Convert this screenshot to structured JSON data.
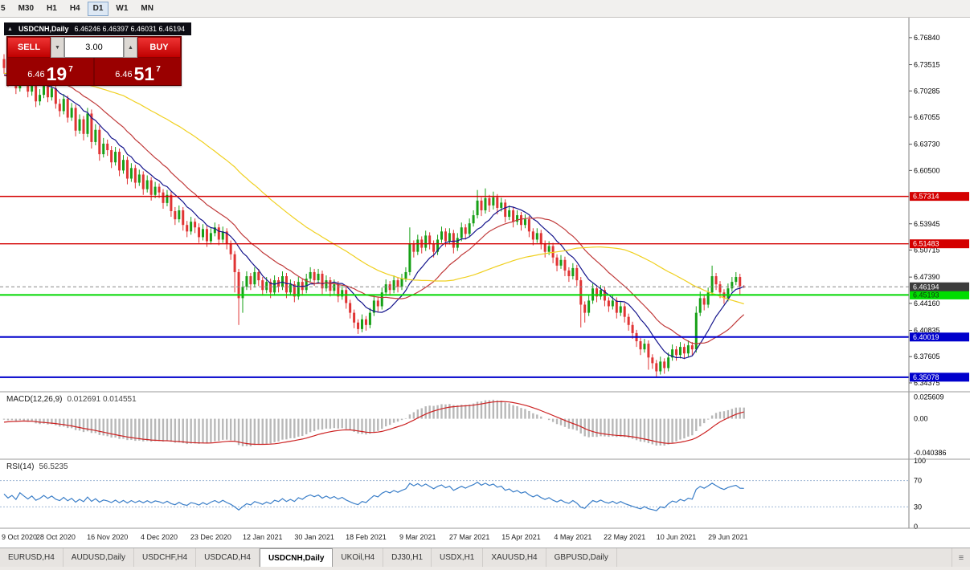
{
  "toolbar": {
    "timeframes": [
      {
        "label": "5",
        "active": false
      },
      {
        "label": "M30",
        "active": false
      },
      {
        "label": "H1",
        "active": false
      },
      {
        "label": "H4",
        "active": false
      },
      {
        "label": "D1",
        "active": true
      },
      {
        "label": "W1",
        "active": false
      },
      {
        "label": "MN",
        "active": false
      }
    ]
  },
  "chart_header": {
    "symbol": "USDCNH,Daily",
    "ohlc": "6.46246 6.46397 6.46031 6.46194",
    "toggle_icon": "▲"
  },
  "trade_panel": {
    "sell_label": "SELL",
    "buy_label": "BUY",
    "volume": "3.00",
    "spinner_down": "▼",
    "spinner_up": "▲",
    "sell_price": {
      "prefix": "6.46",
      "big": "19",
      "sup": "7"
    },
    "buy_price": {
      "prefix": "6.46",
      "big": "51",
      "sup": "7"
    }
  },
  "price_axis": {
    "ticks": [
      "6.76840",
      "6.73515",
      "6.70285",
      "6.67055",
      "6.63730",
      "6.60500",
      "6.53945",
      "6.50715",
      "6.47390",
      "6.44160",
      "6.40835",
      "6.37605",
      "6.34375"
    ],
    "badges": [
      {
        "value": "6.57314",
        "bg": "#d40000",
        "fg": "#ffffff"
      },
      {
        "value": "6.51483",
        "bg": "#d40000",
        "fg": "#ffffff"
      },
      {
        "value": "6.40019",
        "bg": "#0000cc",
        "fg": "#ffffff"
      },
      {
        "value": "6.35078",
        "bg": "#0000cc",
        "fg": "#ffffff"
      },
      {
        "value": "6.45193",
        "bg": "#00dd00",
        "fg": "#103310"
      }
    ],
    "current": {
      "value": "6.46194",
      "bg": "#3c3c3c",
      "fg": "#ffffff"
    }
  },
  "hlines": [
    {
      "price": 6.57314,
      "color": "#d40000",
      "w": 1.4
    },
    {
      "price": 6.51483,
      "color": "#d40000",
      "w": 1.4
    },
    {
      "price": 6.45193,
      "color": "#00d800",
      "w": 2
    },
    {
      "price": 6.40019,
      "color": "#0000cc",
      "w": 2
    },
    {
      "price": 6.35078,
      "color": "#0000cc",
      "w": 2
    }
  ],
  "chart_data": {
    "type": "candlestick",
    "title": "USDCNH, Daily",
    "ylim": [
      6.3368,
      6.789
    ],
    "grid": false,
    "x_label_every": 13,
    "x_labels": [
      "9 Oct 2020",
      "28 Oct 2020",
      "16 Nov 2020",
      "4 Dec 2020",
      "23 Dec 2020",
      "12 Jan 2021",
      "30 Jan 2021",
      "18 Feb 2021",
      "9 Mar 2021",
      "27 Mar 2021",
      "15 Apr 2021",
      "4 May 2021",
      "22 May 2021",
      "10 Jun 2021",
      "29 Jun 2021"
    ],
    "candle_colors": {
      "up": "#16a016",
      "down": "#e03434"
    },
    "moving_averages": [
      {
        "period": 10,
        "color": "#14148c"
      },
      {
        "period": 21,
        "color": "#c03a3a"
      },
      {
        "period": 55,
        "color": "#f0d020"
      }
    ],
    "prehistory_closes": [
      6.742,
      6.748,
      6.735,
      6.728,
      6.738,
      6.745,
      6.731,
      6.722,
      6.73,
      6.718,
      6.712,
      6.72,
      6.708,
      6.7,
      6.71,
      6.718,
      6.705,
      6.712,
      6.722,
      6.715,
      6.726,
      6.734,
      6.728,
      6.736
    ],
    "candles": [
      [
        6.742,
        6.748,
        6.724,
        6.731
      ],
      [
        6.731,
        6.738,
        6.708,
        6.715
      ],
      [
        6.715,
        6.733,
        6.71,
        6.724
      ],
      [
        6.724,
        6.729,
        6.699,
        6.706
      ],
      [
        6.706,
        6.748,
        6.702,
        6.733
      ],
      [
        6.733,
        6.739,
        6.712,
        6.718
      ],
      [
        6.718,
        6.723,
        6.695,
        6.702
      ],
      [
        6.702,
        6.721,
        6.697,
        6.715
      ],
      [
        6.715,
        6.719,
        6.683,
        6.69
      ],
      [
        6.69,
        6.705,
        6.685,
        6.698
      ],
      [
        6.698,
        6.718,
        6.694,
        6.712
      ],
      [
        6.712,
        6.716,
        6.689,
        6.695
      ],
      [
        6.695,
        6.712,
        6.691,
        6.706
      ],
      [
        6.706,
        6.71,
        6.681,
        6.687
      ],
      [
        6.687,
        6.693,
        6.671,
        6.678
      ],
      [
        6.678,
        6.699,
        6.674,
        6.693
      ],
      [
        6.693,
        6.697,
        6.664,
        6.67
      ],
      [
        6.67,
        6.688,
        6.666,
        6.682
      ],
      [
        6.682,
        6.686,
        6.647,
        6.654
      ],
      [
        6.654,
        6.674,
        6.65,
        6.668
      ],
      [
        6.668,
        6.672,
        6.642,
        6.65
      ],
      [
        6.65,
        6.682,
        6.646,
        6.675
      ],
      [
        6.675,
        6.68,
        6.632,
        6.64
      ],
      [
        6.64,
        6.662,
        6.636,
        6.655
      ],
      [
        6.655,
        6.66,
        6.617,
        6.625
      ],
      [
        6.625,
        6.645,
        6.621,
        6.638
      ],
      [
        6.638,
        6.643,
        6.623,
        6.63
      ],
      [
        6.63,
        6.635,
        6.608,
        6.615
      ],
      [
        6.615,
        6.634,
        6.611,
        6.628
      ],
      [
        6.628,
        6.632,
        6.598,
        6.605
      ],
      [
        6.605,
        6.624,
        6.601,
        6.618
      ],
      [
        6.618,
        6.622,
        6.588,
        6.595
      ],
      [
        6.595,
        6.614,
        6.591,
        6.608
      ],
      [
        6.608,
        6.612,
        6.583,
        6.59
      ],
      [
        6.59,
        6.606,
        6.586,
        6.6
      ],
      [
        6.6,
        6.604,
        6.575,
        6.582
      ],
      [
        6.582,
        6.599,
        6.578,
        6.593
      ],
      [
        6.593,
        6.597,
        6.568,
        6.575
      ],
      [
        6.575,
        6.591,
        6.571,
        6.585
      ],
      [
        6.585,
        6.589,
        6.571,
        6.578
      ],
      [
        6.578,
        6.582,
        6.558,
        6.565
      ],
      [
        6.565,
        6.581,
        6.561,
        6.575
      ],
      [
        6.575,
        6.579,
        6.548,
        6.555
      ],
      [
        6.555,
        6.56,
        6.538,
        6.545
      ],
      [
        6.545,
        6.562,
        6.541,
        6.556
      ],
      [
        6.556,
        6.56,
        6.531,
        6.538
      ],
      [
        6.538,
        6.543,
        6.523,
        6.53
      ],
      [
        6.53,
        6.548,
        6.526,
        6.542
      ],
      [
        6.542,
        6.546,
        6.528,
        6.535
      ],
      [
        6.535,
        6.54,
        6.516,
        6.523
      ],
      [
        6.523,
        6.539,
        6.519,
        6.533
      ],
      [
        6.533,
        6.537,
        6.511,
        6.518
      ],
      [
        6.518,
        6.534,
        6.514,
        6.528
      ],
      [
        6.528,
        6.541,
        6.524,
        6.535
      ],
      [
        6.535,
        6.539,
        6.513,
        6.52
      ],
      [
        6.52,
        6.536,
        6.516,
        6.53
      ],
      [
        6.53,
        6.534,
        6.508,
        6.515
      ],
      [
        6.515,
        6.519,
        6.495,
        6.502
      ],
      [
        6.502,
        6.506,
        6.455,
        6.48
      ],
      [
        6.48,
        6.484,
        6.415,
        6.448
      ],
      [
        6.448,
        6.469,
        6.43,
        6.462
      ],
      [
        6.462,
        6.481,
        6.458,
        6.475
      ],
      [
        6.475,
        6.479,
        6.458,
        6.465
      ],
      [
        6.465,
        6.486,
        6.461,
        6.48
      ],
      [
        6.48,
        6.484,
        6.463,
        6.47
      ],
      [
        6.47,
        6.474,
        6.451,
        6.458
      ],
      [
        6.458,
        6.474,
        6.454,
        6.468
      ],
      [
        6.468,
        6.472,
        6.448,
        6.455
      ],
      [
        6.455,
        6.476,
        6.451,
        6.47
      ],
      [
        6.47,
        6.474,
        6.455,
        6.462
      ],
      [
        6.462,
        6.481,
        6.458,
        6.475
      ],
      [
        6.475,
        6.479,
        6.448,
        6.455
      ],
      [
        6.455,
        6.471,
        6.451,
        6.465
      ],
      [
        6.465,
        6.469,
        6.443,
        6.45
      ],
      [
        6.45,
        6.474,
        6.446,
        6.468
      ],
      [
        6.468,
        6.472,
        6.451,
        6.458
      ],
      [
        6.458,
        6.478,
        6.454,
        6.472
      ],
      [
        6.472,
        6.486,
        6.468,
        6.48
      ],
      [
        6.48,
        6.484,
        6.463,
        6.47
      ],
      [
        6.47,
        6.484,
        6.466,
        6.478
      ],
      [
        6.478,
        6.482,
        6.453,
        6.46
      ],
      [
        6.46,
        6.476,
        6.456,
        6.47
      ],
      [
        6.47,
        6.474,
        6.45,
        6.457
      ],
      [
        6.457,
        6.471,
        6.453,
        6.465
      ],
      [
        6.465,
        6.469,
        6.443,
        6.45
      ],
      [
        6.45,
        6.464,
        6.446,
        6.458
      ],
      [
        6.458,
        6.462,
        6.435,
        6.442
      ],
      [
        6.442,
        6.446,
        6.423,
        6.43
      ],
      [
        6.43,
        6.434,
        6.411,
        6.418
      ],
      [
        6.418,
        6.422,
        6.404,
        6.41
      ],
      [
        6.41,
        6.428,
        6.406,
        6.422
      ],
      [
        6.422,
        6.426,
        6.408,
        6.415
      ],
      [
        6.415,
        6.436,
        6.411,
        6.43
      ],
      [
        6.43,
        6.451,
        6.426,
        6.445
      ],
      [
        6.445,
        6.449,
        6.431,
        6.438
      ],
      [
        6.438,
        6.461,
        6.434,
        6.455
      ],
      [
        6.455,
        6.471,
        6.451,
        6.465
      ],
      [
        6.465,
        6.469,
        6.451,
        6.458
      ],
      [
        6.458,
        6.476,
        6.454,
        6.47
      ],
      [
        6.47,
        6.474,
        6.455,
        6.462
      ],
      [
        6.462,
        6.478,
        6.458,
        6.472
      ],
      [
        6.472,
        6.486,
        6.468,
        6.48
      ],
      [
        6.48,
        6.535,
        6.476,
        6.515
      ],
      [
        6.515,
        6.519,
        6.498,
        6.505
      ],
      [
        6.505,
        6.526,
        6.501,
        6.52
      ],
      [
        6.52,
        6.524,
        6.503,
        6.51
      ],
      [
        6.51,
        6.531,
        6.506,
        6.525
      ],
      [
        6.525,
        6.529,
        6.508,
        6.515
      ],
      [
        6.515,
        6.519,
        6.498,
        6.505
      ],
      [
        6.505,
        6.526,
        6.501,
        6.52
      ],
      [
        6.52,
        6.536,
        6.516,
        6.53
      ],
      [
        6.53,
        6.534,
        6.511,
        6.518
      ],
      [
        6.518,
        6.534,
        6.514,
        6.528
      ],
      [
        6.528,
        6.532,
        6.503,
        6.51
      ],
      [
        6.51,
        6.528,
        6.506,
        6.522
      ],
      [
        6.522,
        6.541,
        6.518,
        6.535
      ],
      [
        6.535,
        6.539,
        6.52,
        6.527
      ],
      [
        6.527,
        6.546,
        6.523,
        6.54
      ],
      [
        6.54,
        6.556,
        6.536,
        6.55
      ],
      [
        6.55,
        6.581,
        6.546,
        6.568
      ],
      [
        6.568,
        6.572,
        6.549,
        6.556
      ],
      [
        6.556,
        6.583,
        6.552,
        6.571
      ],
      [
        6.571,
        6.575,
        6.554,
        6.562
      ],
      [
        6.562,
        6.579,
        6.557,
        6.572
      ],
      [
        6.572,
        6.576,
        6.551,
        6.559
      ],
      [
        6.559,
        6.5715,
        6.5545,
        6.5655
      ],
      [
        6.5655,
        6.5695,
        6.541,
        6.548
      ],
      [
        6.548,
        6.562,
        6.544,
        6.556
      ],
      [
        6.556,
        6.56,
        6.535,
        6.542
      ],
      [
        6.542,
        6.556,
        6.538,
        6.55
      ],
      [
        6.55,
        6.554,
        6.531,
        6.538
      ],
      [
        6.538,
        6.551,
        6.534,
        6.545
      ],
      [
        6.545,
        6.549,
        6.523,
        6.53
      ],
      [
        6.53,
        6.534,
        6.513,
        6.52
      ],
      [
        6.52,
        6.534,
        6.516,
        6.528
      ],
      [
        6.528,
        6.532,
        6.508,
        6.515
      ],
      [
        6.515,
        6.519,
        6.498,
        6.505
      ],
      [
        6.505,
        6.518,
        6.501,
        6.512
      ],
      [
        6.512,
        6.516,
        6.491,
        6.498
      ],
      [
        6.498,
        6.502,
        6.481,
        6.488
      ],
      [
        6.488,
        6.501,
        6.484,
        6.495
      ],
      [
        6.495,
        6.499,
        6.475,
        6.482
      ],
      [
        6.482,
        6.486,
        6.468,
        6.475
      ],
      [
        6.475,
        6.491,
        6.471,
        6.485
      ],
      [
        6.485,
        6.489,
        6.463,
        6.47
      ],
      [
        6.47,
        6.474,
        6.412,
        6.44
      ],
      [
        6.44,
        6.444,
        6.418,
        6.43
      ],
      [
        6.43,
        6.451,
        6.426,
        6.445
      ],
      [
        6.445,
        6.466,
        6.441,
        6.46
      ],
      [
        6.46,
        6.464,
        6.443,
        6.45
      ],
      [
        6.45,
        6.464,
        6.446,
        6.458
      ],
      [
        6.458,
        6.462,
        6.438,
        6.445
      ],
      [
        6.445,
        6.449,
        6.431,
        6.438
      ],
      [
        6.438,
        6.452,
        6.434,
        6.445
      ],
      [
        6.445,
        6.449,
        6.423,
        6.43
      ],
      [
        6.43,
        6.444,
        6.426,
        6.438
      ],
      [
        6.438,
        6.442,
        6.418,
        6.425
      ],
      [
        6.425,
        6.429,
        6.408,
        6.415
      ],
      [
        6.415,
        6.419,
        6.398,
        6.405
      ],
      [
        6.405,
        6.409,
        6.388,
        6.395
      ],
      [
        6.395,
        6.399,
        6.378,
        6.385
      ],
      [
        6.385,
        6.398,
        6.381,
        6.392
      ],
      [
        6.392,
        6.396,
        6.36,
        6.375
      ],
      [
        6.375,
        6.379,
        6.361,
        6.368
      ],
      [
        6.368,
        6.372,
        6.351,
        6.358
      ],
      [
        6.358,
        6.376,
        6.354,
        6.37
      ],
      [
        6.37,
        6.374,
        6.355,
        6.362
      ],
      [
        6.362,
        6.381,
        6.358,
        6.375
      ],
      [
        6.375,
        6.391,
        6.371,
        6.385
      ],
      [
        6.385,
        6.389,
        6.371,
        6.378
      ],
      [
        6.378,
        6.394,
        6.374,
        6.388
      ],
      [
        6.388,
        6.392,
        6.373,
        6.38
      ],
      [
        6.38,
        6.396,
        6.376,
        6.39
      ],
      [
        6.39,
        6.394,
        6.378,
        6.385
      ],
      [
        6.385,
        6.438,
        6.381,
        6.43
      ],
      [
        6.43,
        6.456,
        6.426,
        6.448
      ],
      [
        6.448,
        6.452,
        6.433,
        6.44
      ],
      [
        6.44,
        6.461,
        6.436,
        6.455
      ],
      [
        6.455,
        6.488,
        6.451,
        6.475
      ],
      [
        6.475,
        6.479,
        6.458,
        6.465
      ],
      [
        6.465,
        6.469,
        6.448,
        6.455
      ],
      [
        6.455,
        6.459,
        6.441,
        6.448
      ],
      [
        6.448,
        6.466,
        6.444,
        6.46
      ],
      [
        6.46,
        6.474,
        6.456,
        6.468
      ],
      [
        6.468,
        6.48,
        6.464,
        6.474
      ],
      [
        6.474,
        6.478,
        6.452,
        6.4625
      ],
      [
        6.46246,
        6.46397,
        6.46031,
        6.46194
      ]
    ],
    "indicators": {
      "macd": {
        "label": "MACD(12,26,9)",
        "values": "0.012691 0.014551",
        "fast": 12,
        "slow": 26,
        "signal": 9,
        "ylim": [
          -0.046,
          0.03
        ],
        "axis_labels": [
          "0.025609",
          "0.00",
          "-0.040386"
        ],
        "hist_color": "#b8b8b8",
        "signal_color": "#cc2222"
      },
      "rsi": {
        "label": "RSI(14)",
        "value": "56.5235",
        "period": 14,
        "ylim": [
          0,
          100
        ],
        "axis_labels": [
          "100",
          "70",
          "30",
          "0"
        ],
        "levels": [
          70,
          30
        ],
        "color": "#3a7ec8",
        "level_color": "#9fb6d4"
      }
    }
  },
  "tabs": {
    "items": [
      {
        "label": "EURUSD,H4",
        "active": false
      },
      {
        "label": "AUDUSD,Daily",
        "active": false
      },
      {
        "label": "USDCHF,H4",
        "active": false
      },
      {
        "label": "USDCAD,H4",
        "active": false
      },
      {
        "label": "USDCNH,Daily",
        "active": true
      },
      {
        "label": "UKOil,H4",
        "active": false
      },
      {
        "label": "DJ30,H1",
        "active": false
      },
      {
        "label": "USDX,H1",
        "active": false
      },
      {
        "label": "XAUUSD,H4",
        "active": false
      },
      {
        "label": "GBPUSD,Daily",
        "active": false
      }
    ],
    "corner_icon": "≡"
  }
}
